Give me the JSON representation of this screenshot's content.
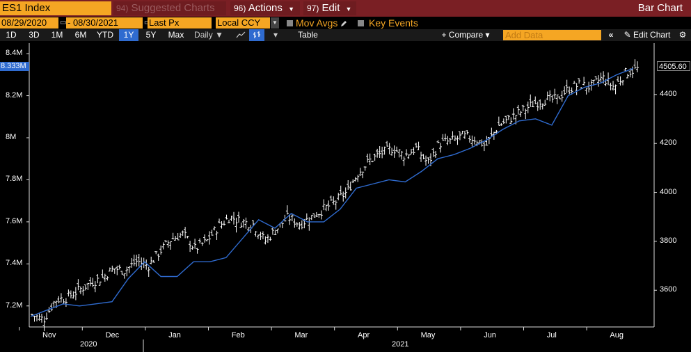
{
  "toolbar": {
    "ticker": "ES1 Index",
    "suggested_num": "94)",
    "suggested_label": "Suggested Charts",
    "actions_num": "96)",
    "actions_label": "Actions",
    "edit_num": "97)",
    "edit_label": "Edit",
    "window_title": "Bar Chart"
  },
  "settings": {
    "start_date": "08/29/2020",
    "end_date": "08/30/2021",
    "price_field": "Last Px",
    "currency": "Local CCY",
    "mov_avgs": "Mov Avgs",
    "key_events": "Key Events"
  },
  "ranges": {
    "items": [
      "1D",
      "3D",
      "1M",
      "6M",
      "YTD",
      "1Y",
      "5Y",
      "Max"
    ],
    "selected": "1Y",
    "frequency": "Daily",
    "table_label": "Table",
    "compare_label": "+ Compare",
    "add_data_placeholder": "Add Data",
    "edit_chart_label": "Edit Chart"
  },
  "icons": {
    "collapse": "double-chevron-left-icon",
    "pencil": "pencil-icon",
    "settings": "gear-icon",
    "line_chart": "line-chart-icon",
    "bar_chart": "bar-chart-icon"
  },
  "colors": {
    "accent_orange": "#f5a623",
    "title_bar": "#7a1f24",
    "volume_line": "#2f6bd0",
    "price_bars": "#ffffff",
    "background": "#000000"
  },
  "chart_data": {
    "type": "bar",
    "x_ticks": [
      "Nov",
      "Dec",
      "Jan",
      "Feb",
      "Mar",
      "Apr",
      "May",
      "Jun",
      "Jul",
      "Aug"
    ],
    "year_labels": [
      "2020",
      "2021"
    ],
    "left_axis": {
      "ticks": [
        "7.2M",
        "7.4M",
        "7.6M",
        "7.8M",
        "8M",
        "8.2M",
        "8.4M"
      ],
      "range": [
        7.1,
        8.45
      ],
      "last_value": "8.333M"
    },
    "right_axis": {
      "ticks": [
        "3600",
        "3800",
        "4000",
        "4200",
        "4400"
      ],
      "range": [
        3450,
        4610
      ],
      "last_value": "4505.60"
    },
    "price_series_weekly_close": [
      3500,
      3480,
      3560,
      3570,
      3600,
      3630,
      3650,
      3690,
      3680,
      3720,
      3700,
      3760,
      3810,
      3830,
      3770,
      3800,
      3860,
      3900,
      3880,
      3870,
      3800,
      3850,
      3900,
      3870,
      3900,
      3930,
      3960,
      4000,
      4080,
      4130,
      4160,
      4180,
      4150,
      4180,
      4120,
      4200,
      4210,
      4230,
      4220,
      4190,
      4270,
      4300,
      4330,
      4360,
      4380,
      4380,
      4420,
      4440,
      4430,
      4470,
      4430,
      4490,
      4505
    ],
    "volume_series": [
      7.15,
      7.18,
      7.21,
      7.2,
      7.21,
      7.22,
      7.33,
      7.41,
      7.34,
      7.34,
      7.41,
      7.41,
      7.43,
      7.52,
      7.61,
      7.57,
      7.64,
      7.6,
      7.6,
      7.66,
      7.76,
      7.78,
      7.8,
      7.79,
      7.84,
      7.9,
      7.92,
      7.95,
      7.99,
      8.04,
      8.08,
      8.09,
      8.06,
      8.2,
      8.24,
      8.26,
      8.3,
      8.33
    ]
  }
}
